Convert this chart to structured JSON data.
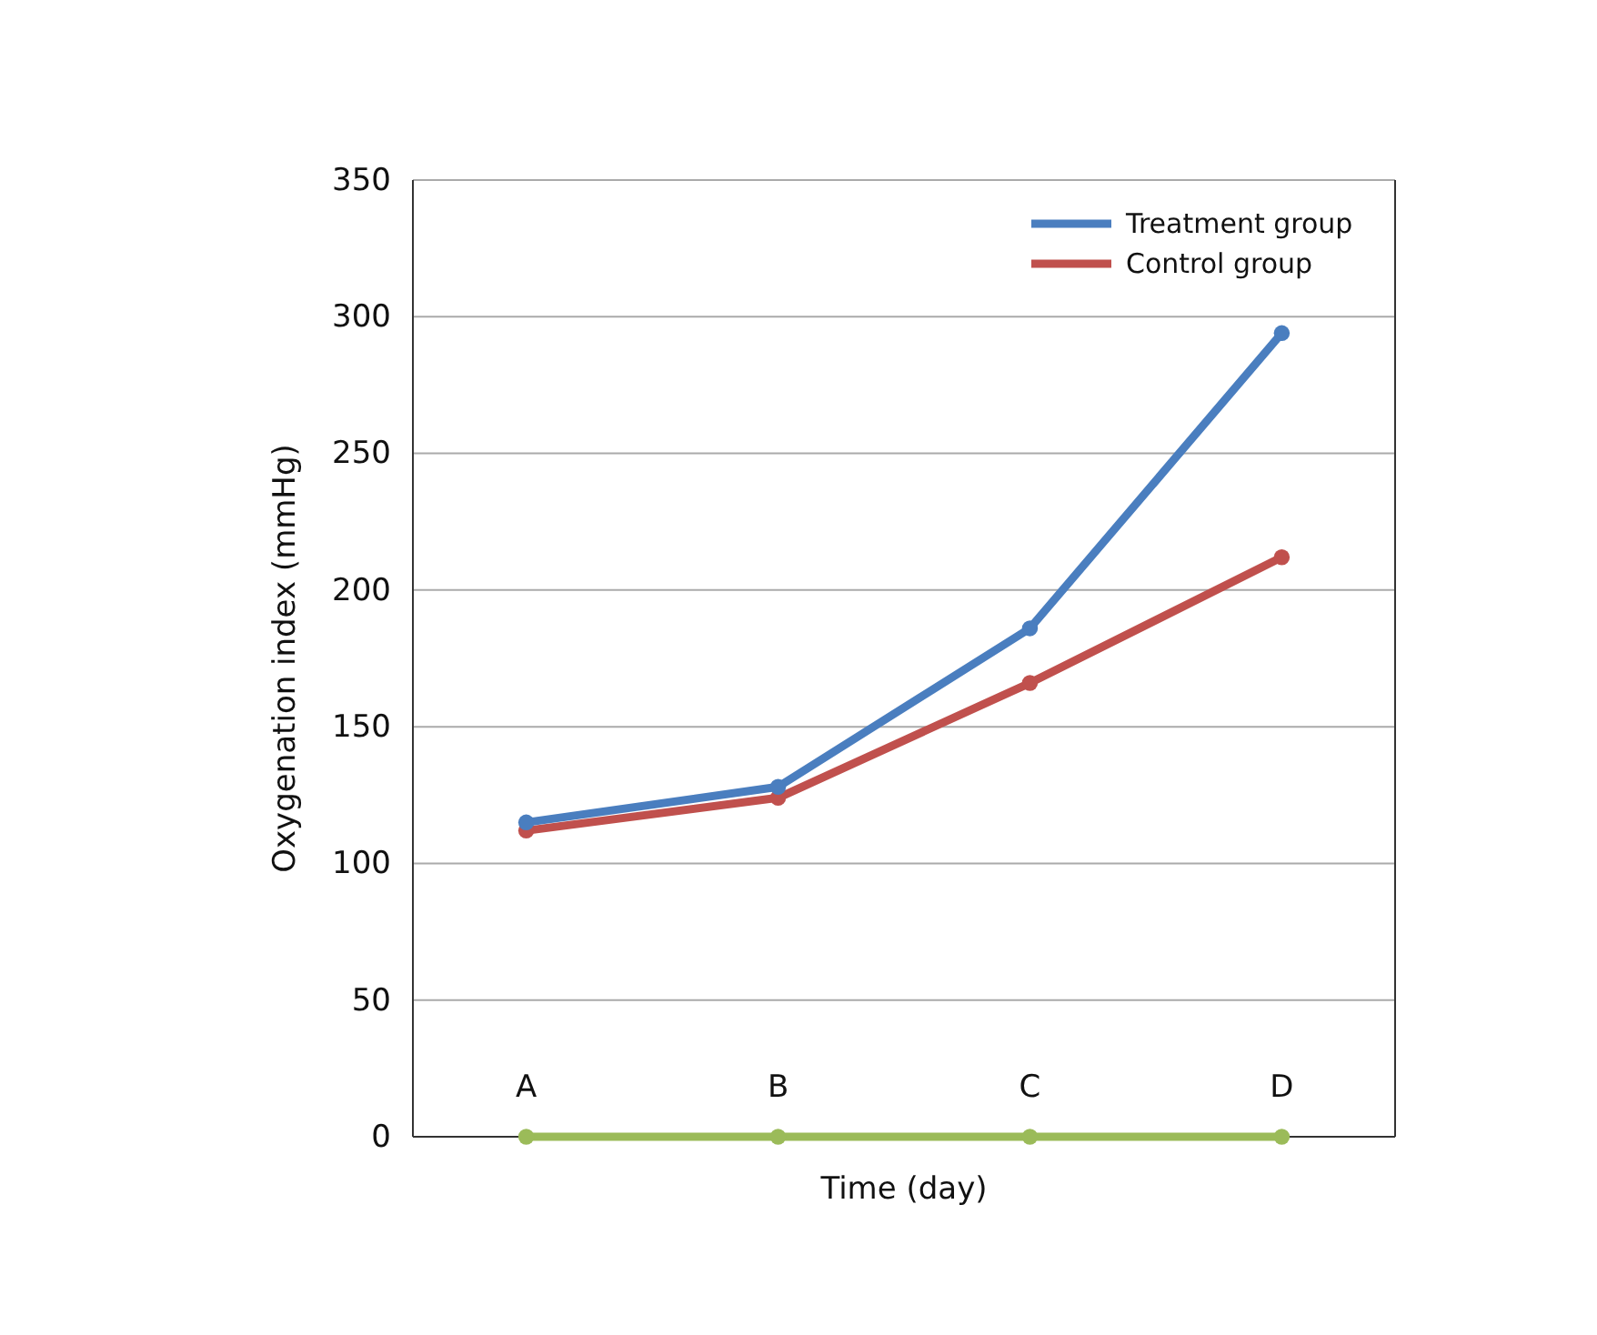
{
  "chart_data": {
    "type": "line",
    "xlabel": "Time (day)",
    "ylabel": "Oxygenation index (mmHg)",
    "categories": [
      "A",
      "B",
      "C",
      "D"
    ],
    "series": [
      {
        "name": "Treatment group",
        "color": "#4a7ebf",
        "values": [
          115,
          128,
          186,
          294
        ]
      },
      {
        "name": "Control group",
        "color": "#c0504d",
        "values": [
          112,
          124,
          166,
          212
        ]
      },
      {
        "color": "#9bbb59",
        "values": [
          0,
          0,
          0,
          0
        ]
      }
    ],
    "ylim": [
      0,
      350
    ],
    "yticks": [
      0,
      50,
      100,
      150,
      200,
      250,
      300,
      350
    ],
    "grid": "y",
    "legend": "top right",
    "marker": "circle",
    "line_style": "solid"
  }
}
